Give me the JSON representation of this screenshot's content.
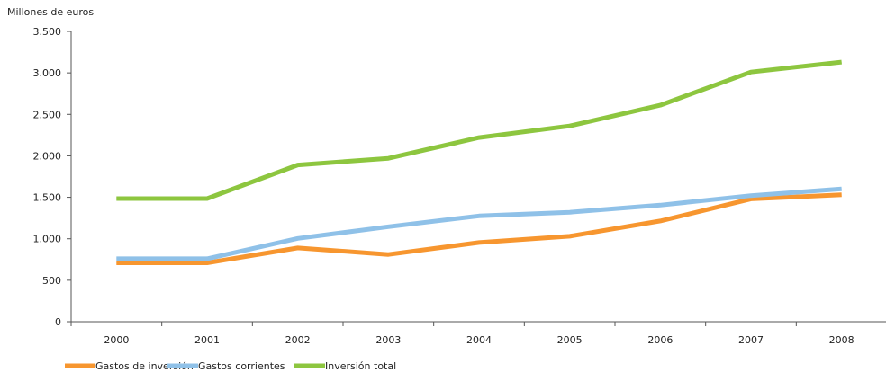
{
  "chart_data": {
    "type": "line",
    "ylabel": "Millones de euros",
    "categories": [
      "2000",
      "2001",
      "2002",
      "2003",
      "2004",
      "2005",
      "2006",
      "2007",
      "2008"
    ],
    "ylim": [
      0,
      3500
    ],
    "y_ticks": [
      0,
      500,
      1000,
      1500,
      2000,
      2500,
      3000,
      3500
    ],
    "y_tick_labels": [
      "0",
      "500",
      "1.000",
      "1.500",
      "2.000",
      "2.500",
      "3.000",
      "3.500"
    ],
    "grid": false,
    "legend_position": "bottom-left",
    "series": [
      {
        "name": "Gastos de inversión",
        "color": "#f7962f",
        "values": [
          710,
          710,
          890,
          810,
          955,
          1030,
          1215,
          1480,
          1530
        ]
      },
      {
        "name": "Gastos corrientes",
        "color": "#8fc1e8",
        "values": [
          760,
          760,
          1005,
          1145,
          1275,
          1320,
          1405,
          1520,
          1600
        ]
      },
      {
        "name": "Inversión total",
        "color": "#8dc63f",
        "values": [
          1485,
          1485,
          1890,
          1970,
          2220,
          2360,
          2610,
          3010,
          3130
        ]
      }
    ]
  }
}
